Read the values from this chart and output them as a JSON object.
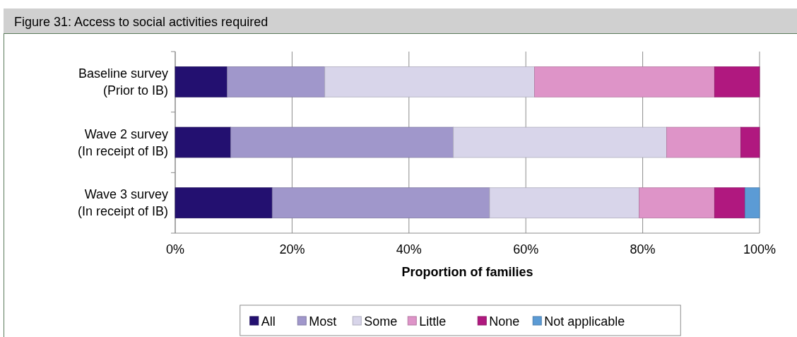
{
  "chart_data": {
    "type": "bar",
    "orientation": "horizontal",
    "stacked": true,
    "title": "Figure 31: Access to social activities required",
    "xlabel": "Proportion of families",
    "categories": [
      "Baseline survey\n(Prior to IB)",
      "Wave 2 survey\n(In receipt of IB)",
      "Wave 3 survey\n(In receipt of IB)"
    ],
    "series": [
      {
        "name": "All",
        "color": "#231070",
        "values": [
          8.9,
          9.5,
          16.6
        ]
      },
      {
        "name": "Most",
        "color": "#a097cb",
        "values": [
          16.7,
          38.1,
          37.2
        ]
      },
      {
        "name": "Some",
        "color": "#d8d5ea",
        "values": [
          35.9,
          36.5,
          25.6
        ]
      },
      {
        "name": "Little",
        "color": "#de94c8",
        "values": [
          30.8,
          12.7,
          12.9
        ]
      },
      {
        "name": "None",
        "color": "#b0187f",
        "values": [
          7.7,
          3.2,
          5.2
        ]
      },
      {
        "name": "Not applicable",
        "color": "#5b9bd5",
        "values": [
          0,
          0,
          2.5
        ]
      }
    ],
    "xlim": [
      0,
      100
    ],
    "xticks": [
      {
        "value": 0,
        "label": "0%"
      },
      {
        "value": 20,
        "label": "20%"
      },
      {
        "value": 40,
        "label": "40%"
      },
      {
        "value": 60,
        "label": "60%"
      },
      {
        "value": 80,
        "label": "80%"
      },
      {
        "value": 100,
        "label": "100%"
      }
    ],
    "grid": "x",
    "legend": "bottom"
  }
}
